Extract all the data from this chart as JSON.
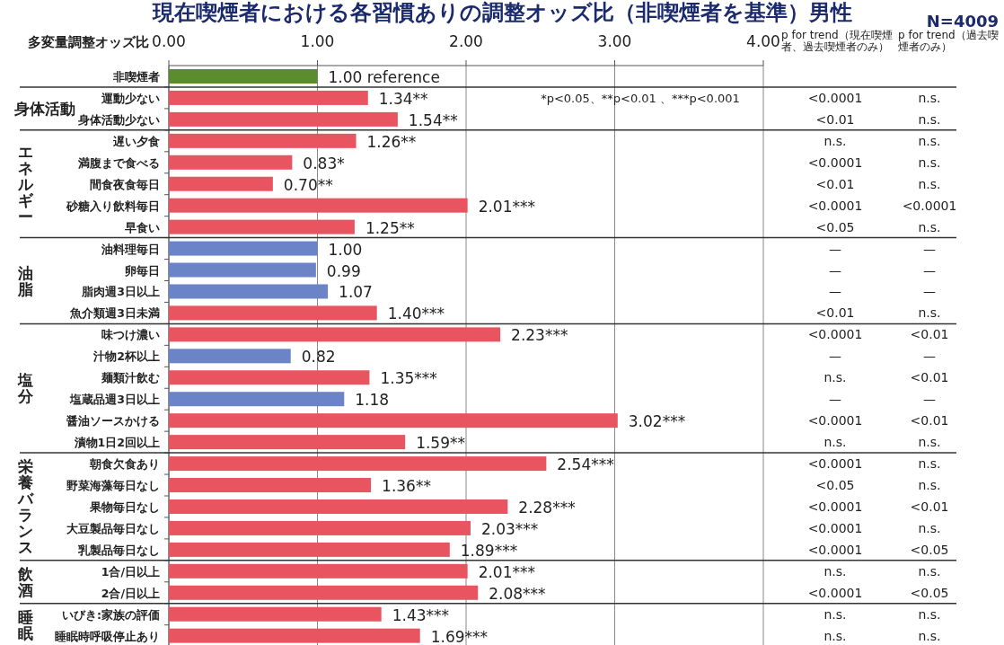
{
  "chart_data": {
    "type": "bar",
    "orientation": "horizontal",
    "title": "現在喫煙者における各習慣ありの調整オッズ比（非喫煙者を基準）男性",
    "xlabel": "多変量調整オッズ比",
    "categories": [
      "非喫煙者",
      "運動少ない",
      "身体活動少ない",
      "遅い夕食",
      "満腹まで食べる",
      "間食夜食毎日",
      "砂糖入り飲料毎日",
      "早食い",
      "油料理毎日",
      "卵毎日",
      "脂肉週3日以上",
      "魚介類週3日未満",
      "味つけ濃い",
      "汁物2杯以上",
      "麺類汁飲む",
      "塩蔵品週3日以上",
      "醤油ソースかける",
      "漬物1日2回以上",
      "朝食欠食あり",
      "野菜海藻毎日なし",
      "果物毎日なし",
      "大豆製品毎日なし",
      "乳製品毎日なし",
      "1合/日以上",
      "2合/日以上",
      "いびき:家族の評価",
      "睡眠時呼吸停止あり"
    ],
    "values": [
      1.0,
      1.34,
      1.54,
      1.26,
      0.83,
      0.7,
      2.01,
      1.25,
      1.0,
      0.99,
      1.07,
      1.4,
      2.23,
      0.82,
      1.35,
      1.18,
      3.02,
      1.59,
      2.54,
      1.36,
      2.28,
      2.03,
      1.89,
      2.01,
      2.08,
      1.43,
      1.69
    ],
    "colors": [
      "#5b8c2e",
      "#e8545f",
      "#e8545f",
      "#e8545f",
      "#e8545f",
      "#e8545f",
      "#e8545f",
      "#e8545f",
      "#6b84c8",
      "#6b84c8",
      "#6b84c8",
      "#e8545f",
      "#e8545f",
      "#6b84c8",
      "#e8545f",
      "#6b84c8",
      "#e8545f",
      "#e8545f",
      "#e8545f",
      "#e8545f",
      "#e8545f",
      "#e8545f",
      "#e8545f",
      "#e8545f",
      "#e8545f",
      "#e8545f",
      "#e8545f"
    ],
    "value_labels": [
      "1.00 reference",
      "1.34**",
      "1.54**",
      "1.26**",
      "0.83*",
      "0.70**",
      "2.01***",
      "1.25**",
      "1.00",
      "0.99",
      "1.07",
      "1.40***",
      "2.23***",
      "0.82",
      "1.35***",
      "1.18",
      "3.02***",
      "1.59**",
      "2.54***",
      "1.36**",
      "2.28***",
      "2.03***",
      "1.89***",
      "2.01***",
      "2.08***",
      "1.43***",
      "1.69***"
    ],
    "xlim": [
      0,
      4
    ],
    "xticks": [
      {
        "value": 0,
        "label": "0.00"
      },
      {
        "value": 1,
        "label": "1.00"
      },
      {
        "value": 2,
        "label": "2.00"
      },
      {
        "value": 3,
        "label": "3.00"
      },
      {
        "value": 4,
        "label": "4.00"
      }
    ],
    "grid": "x",
    "annotations": [
      "N=4009",
      "*p<0.05、**p<0.01 、***p<0.001",
      "p for trend（現在喫煙者、過去喫煙者のみ）",
      "p for trend（過去喫煙者のみ）",
      "身体活動",
      "エネルギー",
      "油脂",
      "塩分",
      "栄養バランス",
      "飲酒",
      "睡眠",
      "<0.0001",
      "n.s.",
      "<0.01",
      "n.s.",
      "n.s.",
      "n.s.",
      "<0.0001",
      "n.s.",
      "<0.01",
      "n.s.",
      "<0.0001",
      "<0.0001",
      "<0.05",
      "n.s.",
      "—",
      "—",
      "—",
      "—",
      "—",
      "—",
      "<0.01",
      "n.s.",
      "<0.0001",
      "<0.01",
      "—",
      "—",
      "n.s.",
      "<0.01",
      "—",
      "—",
      "<0.0001",
      "<0.01",
      "n.s.",
      "n.s.",
      "<0.0001",
      "n.s.",
      "<0.05",
      "n.s.",
      "<0.0001",
      "<0.01",
      "<0.0001",
      "n.s.",
      "<0.0001",
      "<0.05",
      "n.s.",
      "n.s.",
      "<0.0001",
      "<0.05",
      "n.s.",
      "n.s.",
      "n.s.",
      "n.s."
    ]
  }
}
